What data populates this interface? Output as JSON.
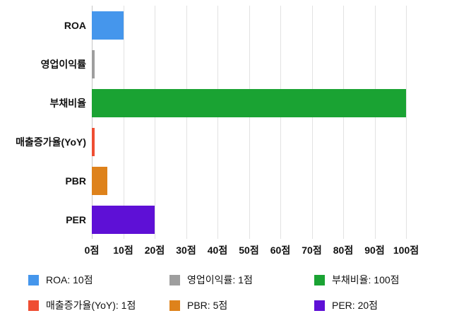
{
  "chart_data": {
    "type": "bar",
    "orientation": "horizontal",
    "title": "",
    "xlabel": "",
    "ylabel": "",
    "unit": "점",
    "xlim": [
      0,
      100
    ],
    "grid": true,
    "legend_position": "bottom",
    "categories": [
      "ROA",
      "영업이익률",
      "부채비율",
      "매출증가율(YoY)",
      "PBR",
      "PER"
    ],
    "values": [
      10,
      1,
      100,
      1,
      5,
      20
    ],
    "colors": [
      "#4596ec",
      "#9e9e9e",
      "#1aa333",
      "#ef4e33",
      "#de821b",
      "#5e10d6"
    ],
    "x_ticks": [
      {
        "value": 0,
        "label": "0점"
      },
      {
        "value": 10,
        "label": "10점"
      },
      {
        "value": 20,
        "label": "20점"
      },
      {
        "value": 30,
        "label": "30점"
      },
      {
        "value": 40,
        "label": "40점"
      },
      {
        "value": 50,
        "label": "50점"
      },
      {
        "value": 60,
        "label": "60점"
      },
      {
        "value": 70,
        "label": "70점"
      },
      {
        "value": 80,
        "label": "80점"
      },
      {
        "value": 90,
        "label": "90점"
      },
      {
        "value": 100,
        "label": "100점"
      }
    ],
    "legend": [
      {
        "label": "ROA: 10점",
        "color": "#4596ec"
      },
      {
        "label": "영업이익률: 1점",
        "color": "#9e9e9e"
      },
      {
        "label": "부채비율: 100점",
        "color": "#1aa333"
      },
      {
        "label": "매출증가율(YoY): 1점",
        "color": "#ef4e33"
      },
      {
        "label": "PBR: 5점",
        "color": "#de821b"
      },
      {
        "label": "PER: 20점",
        "color": "#5e10d6"
      }
    ]
  }
}
